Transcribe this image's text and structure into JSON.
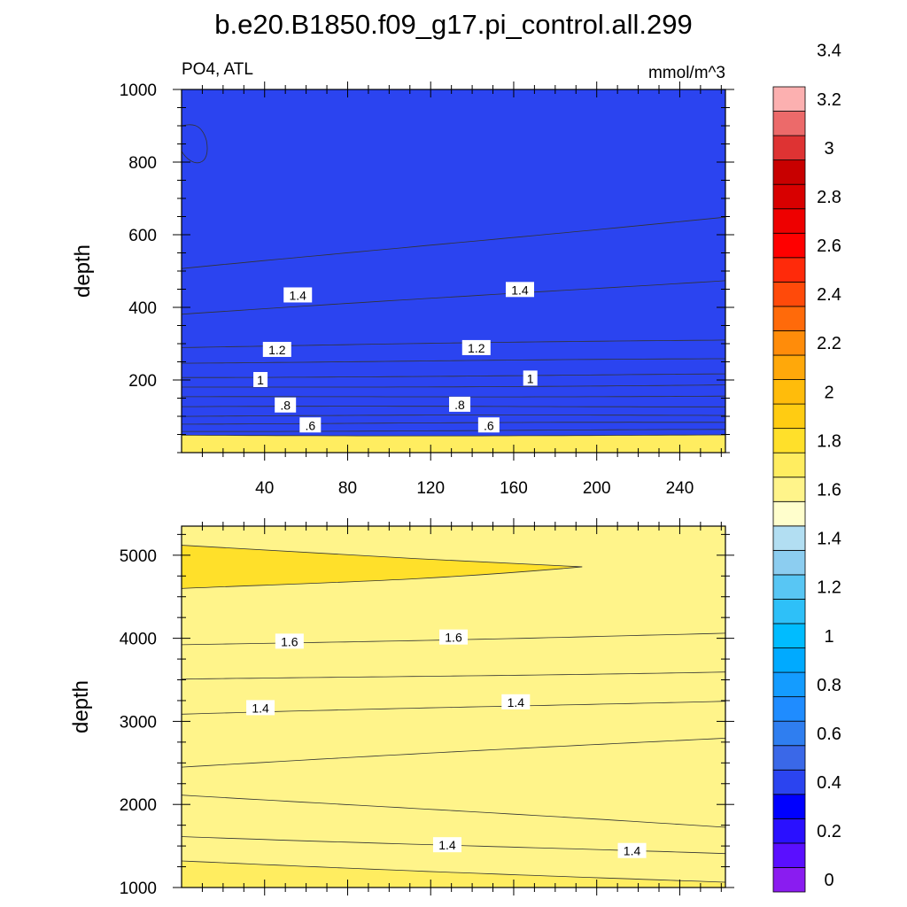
{
  "title": "b.e20.B1850.f09_g17.pi_control.all.299",
  "left_string": "PO4, ATL",
  "units": "mmol/m^3",
  "colorbar": {
    "labels": [
      "0",
      "0.2",
      "0.4",
      "0.6",
      "0.8",
      "1",
      "1.2",
      "1.4",
      "1.6",
      "1.8",
      "2",
      "2.2",
      "2.4",
      "2.6",
      "2.8",
      "3",
      "3.2",
      "3.4"
    ],
    "colors": [
      "#8a1cf0",
      "#5a0fff",
      "#2a10ff",
      "#0000ff",
      "#2b44f0",
      "#3a68e8",
      "#2f7ef0",
      "#1f8cff",
      "#149cff",
      "#00aaff",
      "#00bcff",
      "#2ec0f8",
      "#58c6f4",
      "#8ccdf0",
      "#b2def2",
      "#fffecc",
      "#fff48a",
      "#ffed60",
      "#ffe02a",
      "#ffcc12",
      "#ffbc0b",
      "#ffa80a",
      "#ff8c0a",
      "#ff6a0a",
      "#ff4a0a",
      "#ff2a0a",
      "#ff0000",
      "#ee0000",
      "#d80000",
      "#c80000",
      "#de3333",
      "#ec6a6a",
      "#fcb0b0"
    ]
  },
  "chart_data": [
    {
      "type": "contour",
      "panel": "upper",
      "xlabel": "",
      "ylabel": "depth",
      "xlim": [
        0,
        262
      ],
      "ylim": [
        1000,
        0
      ],
      "xticks": [
        40,
        80,
        120,
        160,
        200,
        240
      ],
      "yticks": [
        200,
        400,
        600,
        800,
        1000
      ],
      "levels": [
        {
          "value": 0.4,
          "y0": 48,
          "y1": 48
        },
        {
          "value": 0.5,
          "y0": 60,
          "y1": 62
        },
        {
          "value": 0.6,
          "y0": 80,
          "y1": 82
        },
        {
          "value": 0.7,
          "y0": 100,
          "y1": 103
        },
        {
          "value": 0.8,
          "y0": 125,
          "y1": 128
        },
        {
          "value": 0.9,
          "y0": 152,
          "y1": 157
        },
        {
          "value": 1.0,
          "y0": 180,
          "y1": 186
        },
        {
          "value": 1.1,
          "y0": 208,
          "y1": 215
        },
        {
          "value": 1.2,
          "y0": 248,
          "y1": 257
        },
        {
          "value": 1.3,
          "y0": 290,
          "y1": 310
        },
        {
          "value": 1.4,
          "y0": 380,
          "y1": 475
        },
        {
          "value": 1.5,
          "y0": 505,
          "y1": 650
        }
      ],
      "labels": [
        {
          "text": ".6",
          "x": 62,
          "y": 75
        },
        {
          "text": ".6",
          "x": 148,
          "y": 75
        },
        {
          "text": ".8",
          "x": 50,
          "y": 130
        },
        {
          "text": ".8",
          "x": 134,
          "y": 132
        },
        {
          "text": "1",
          "x": 38,
          "y": 200
        },
        {
          "text": "1",
          "x": 168,
          "y": 204
        },
        {
          "text": "1.2",
          "x": 46,
          "y": 283
        },
        {
          "text": "1.2",
          "x": 142,
          "y": 288
        },
        {
          "text": "1.4",
          "x": 56,
          "y": 433
        },
        {
          "text": "1.4",
          "x": 163,
          "y": 448
        }
      ]
    },
    {
      "type": "contour",
      "panel": "lower",
      "xlabel": "",
      "ylabel": "depth",
      "xlim": [
        0,
        262
      ],
      "ylim": [
        5350,
        1000
      ],
      "xticks": [
        40,
        80,
        120,
        160,
        200,
        240
      ],
      "yticks": [
        1000,
        2000,
        3000,
        4000,
        5000
      ],
      "levels": [
        {
          "value": 1.5,
          "y0": 1320,
          "y1": 1060
        },
        {
          "value": 1.4,
          "y0": 1620,
          "y1": 1400
        },
        {
          "value": 1.3,
          "y0": 2120,
          "y1": 1720
        },
        {
          "value": 1.3,
          "y0": 2450,
          "y1": 2800
        },
        {
          "value": 1.4,
          "y0": 3080,
          "y1": 3250
        },
        {
          "value": 1.5,
          "y0": 3500,
          "y1": 3600
        },
        {
          "value": 1.6,
          "y0": 3920,
          "y1": 4060
        }
      ],
      "high_region": {
        "value": 1.7,
        "x_start": 0,
        "x_tip": 193,
        "top": [
          4600,
          4860
        ],
        "bottom": [
          5120,
          4860
        ]
      },
      "labels": [
        {
          "text": "1.4",
          "x": 128,
          "y": 1510
        },
        {
          "text": "1.4",
          "x": 217,
          "y": 1440
        },
        {
          "text": "1.4",
          "x": 38,
          "y": 3160
        },
        {
          "text": "1.4",
          "x": 161,
          "y": 3230
        },
        {
          "text": "1.6",
          "x": 52,
          "y": 3960
        },
        {
          "text": "1.6",
          "x": 131,
          "y": 4010
        }
      ]
    }
  ]
}
